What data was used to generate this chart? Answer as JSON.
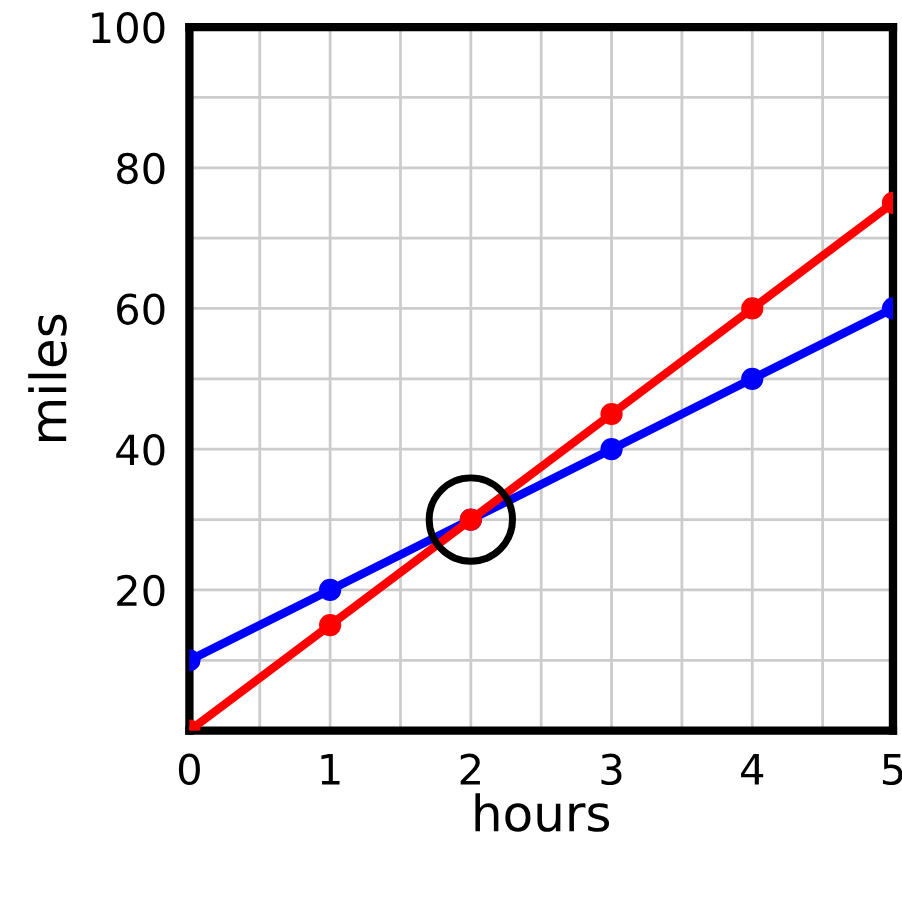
{
  "chart_data": {
    "type": "line",
    "xlabel": "hours",
    "ylabel": "miles",
    "x": [
      0,
      1,
      2,
      3,
      4,
      5
    ],
    "series": [
      {
        "color": "#0000ff",
        "values": [
          10,
          20,
          30,
          40,
          50,
          60
        ]
      },
      {
        "color": "#ff0000",
        "values": [
          0,
          15,
          30,
          45,
          60,
          75
        ]
      },
      {
        "type": "scatter",
        "color": "#000000",
        "x": [
          2
        ],
        "values": [
          30
        ]
      }
    ],
    "marker": "circle",
    "line_style": "solid",
    "grid": true,
    "xlim": [
      0,
      5
    ],
    "ylim": [
      0,
      100
    ],
    "xticks": [
      0,
      {
        "value": 0.5,
        "label": null
      },
      1,
      {
        "value": 1.5,
        "label": null
      },
      2,
      {
        "value": 2.5,
        "label": null
      },
      3,
      {
        "value": 3.5,
        "label": null
      },
      4,
      {
        "value": 4.5,
        "label": null
      },
      5
    ],
    "yticks": [
      {
        "value": 0,
        "label": null
      },
      {
        "value": 10,
        "label": null
      },
      20,
      {
        "value": 30,
        "label": null
      },
      40,
      {
        "value": 50,
        "label": null
      },
      60,
      {
        "value": 70,
        "label": null
      },
      80,
      {
        "value": 90,
        "label": null
      },
      100
    ]
  }
}
